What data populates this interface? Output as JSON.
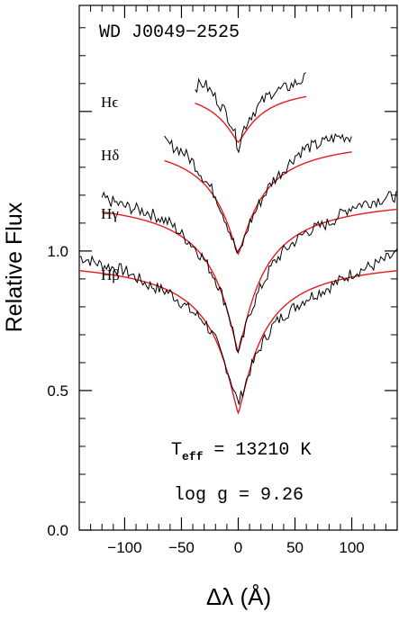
{
  "chart_data": {
    "type": "line",
    "title": "WD J0049−2525",
    "xlabel": "Δλ (Å)",
    "ylabel": "Relative Flux",
    "xlim": [
      -140,
      140
    ],
    "ylim": [
      0.0,
      1.88
    ],
    "x_ticks": [
      -100,
      -50,
      0,
      50,
      100
    ],
    "x_tick_labels": [
      "−100",
      "−50",
      "0",
      "50",
      "100"
    ],
    "y_ticks": [
      0.0,
      0.5,
      1.0
    ],
    "y_tick_labels": [
      "0.0",
      "0.5",
      "1.0"
    ],
    "annotations": {
      "teff_label": "T",
      "teff_sub": "eff",
      "teff_value": " = 13210 K",
      "logg": "log g = 9.26"
    },
    "colors": {
      "observed": "#000000",
      "model": "#e8191d"
    },
    "series": [
      {
        "name": "Hβ",
        "label_greek": "β",
        "xrange": [
          -140,
          140
        ],
        "continuum": 0.98,
        "model_min": 0.42,
        "observed": [
          [
            -140,
            0.98
          ],
          [
            -120,
            0.95
          ],
          [
            -100,
            0.93
          ],
          [
            -80,
            0.88
          ],
          [
            -60,
            0.85
          ],
          [
            -40,
            0.78
          ],
          [
            -30,
            0.75
          ],
          [
            -20,
            0.68
          ],
          [
            -10,
            0.58
          ],
          [
            -5,
            0.52
          ],
          [
            0,
            0.45
          ],
          [
            5,
            0.51
          ],
          [
            10,
            0.57
          ],
          [
            20,
            0.66
          ],
          [
            30,
            0.73
          ],
          [
            40,
            0.77
          ],
          [
            60,
            0.83
          ],
          [
            80,
            0.87
          ],
          [
            100,
            0.92
          ],
          [
            120,
            0.95
          ],
          [
            140,
            0.99
          ]
        ]
      },
      {
        "name": "Hγ",
        "label_greek": "γ",
        "xrange": [
          -120,
          140
        ],
        "continuum": 1.2,
        "model_min": 0.64,
        "observed": [
          [
            -120,
            1.19
          ],
          [
            -100,
            1.16
          ],
          [
            -80,
            1.14
          ],
          [
            -60,
            1.1
          ],
          [
            -40,
            1.02
          ],
          [
            -30,
            0.97
          ],
          [
            -20,
            0.9
          ],
          [
            -10,
            0.8
          ],
          [
            -5,
            0.72
          ],
          [
            0,
            0.63
          ],
          [
            5,
            0.7
          ],
          [
            10,
            0.78
          ],
          [
            20,
            0.87
          ],
          [
            30,
            0.95
          ],
          [
            40,
            1.0
          ],
          [
            60,
            1.07
          ],
          [
            80,
            1.1
          ],
          [
            100,
            1.16
          ],
          [
            120,
            1.18
          ],
          [
            140,
            1.2
          ]
        ]
      },
      {
        "name": "Hδ",
        "label_greek": "δ",
        "xrange": [
          -65,
          100
        ],
        "continuum": 1.41,
        "model_min": 0.99,
        "observed": [
          [
            -65,
            1.39
          ],
          [
            -50,
            1.36
          ],
          [
            -40,
            1.32
          ],
          [
            -30,
            1.26
          ],
          [
            -20,
            1.2
          ],
          [
            -10,
            1.1
          ],
          [
            -5,
            1.04
          ],
          [
            0,
            0.98
          ],
          [
            5,
            1.04
          ],
          [
            10,
            1.1
          ],
          [
            20,
            1.18
          ],
          [
            30,
            1.25
          ],
          [
            40,
            1.29
          ],
          [
            50,
            1.34
          ],
          [
            60,
            1.37
          ],
          [
            70,
            1.38
          ],
          [
            80,
            1.4
          ],
          [
            90,
            1.41
          ],
          [
            100,
            1.41
          ]
        ]
      },
      {
        "name": "Hϵ",
        "label_greek": "ϵ",
        "xrange": [
          -38,
          60
        ],
        "continuum": 1.6,
        "model_min": 1.39,
        "observed": [
          [
            -38,
            1.59
          ],
          [
            -30,
            1.6
          ],
          [
            -20,
            1.55
          ],
          [
            -10,
            1.49
          ],
          [
            -5,
            1.45
          ],
          [
            0,
            1.37
          ],
          [
            5,
            1.44
          ],
          [
            10,
            1.48
          ],
          [
            20,
            1.53
          ],
          [
            30,
            1.57
          ],
          [
            40,
            1.58
          ],
          [
            50,
            1.6
          ],
          [
            60,
            1.62
          ]
        ]
      }
    ]
  }
}
